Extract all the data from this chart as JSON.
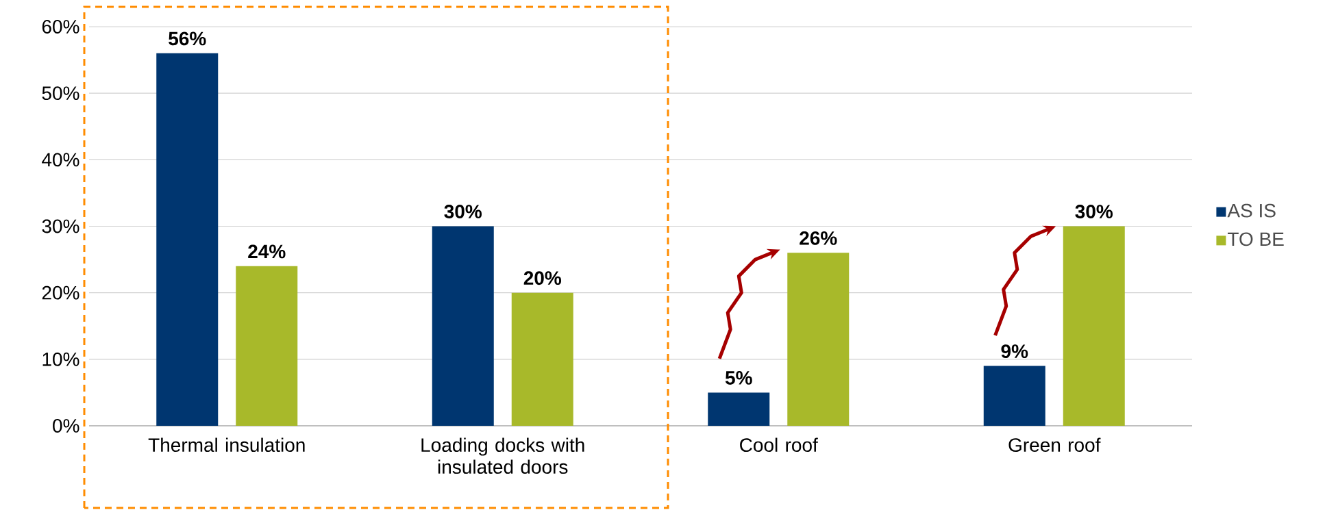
{
  "chart_data": {
    "type": "bar",
    "categories": [
      "Thermal insulation",
      "Loading docks with insulated doors",
      "Cool roof",
      "Green roof"
    ],
    "series": [
      {
        "name": "AS IS",
        "color": "#003670",
        "values": [
          56,
          30,
          5,
          9
        ],
        "value_labels": [
          "56%",
          "30%",
          "5%",
          "9%"
        ]
      },
      {
        "name": "TO BE",
        "color": "#a8b92a",
        "values": [
          24,
          20,
          26,
          30
        ],
        "value_labels": [
          "24%",
          "20%",
          "26%",
          "30%"
        ]
      }
    ],
    "ylim": [
      0,
      60
    ],
    "yticks": [
      {
        "value": 0,
        "label": "0%"
      },
      {
        "value": 10,
        "label": "10%"
      },
      {
        "value": 20,
        "label": "20%"
      },
      {
        "value": 30,
        "label": "30%"
      },
      {
        "value": 40,
        "label": "40%"
      },
      {
        "value": 50,
        "label": "50%"
      },
      {
        "value": 60,
        "label": "60%"
      }
    ],
    "grid": "y",
    "legend": "right"
  }
}
